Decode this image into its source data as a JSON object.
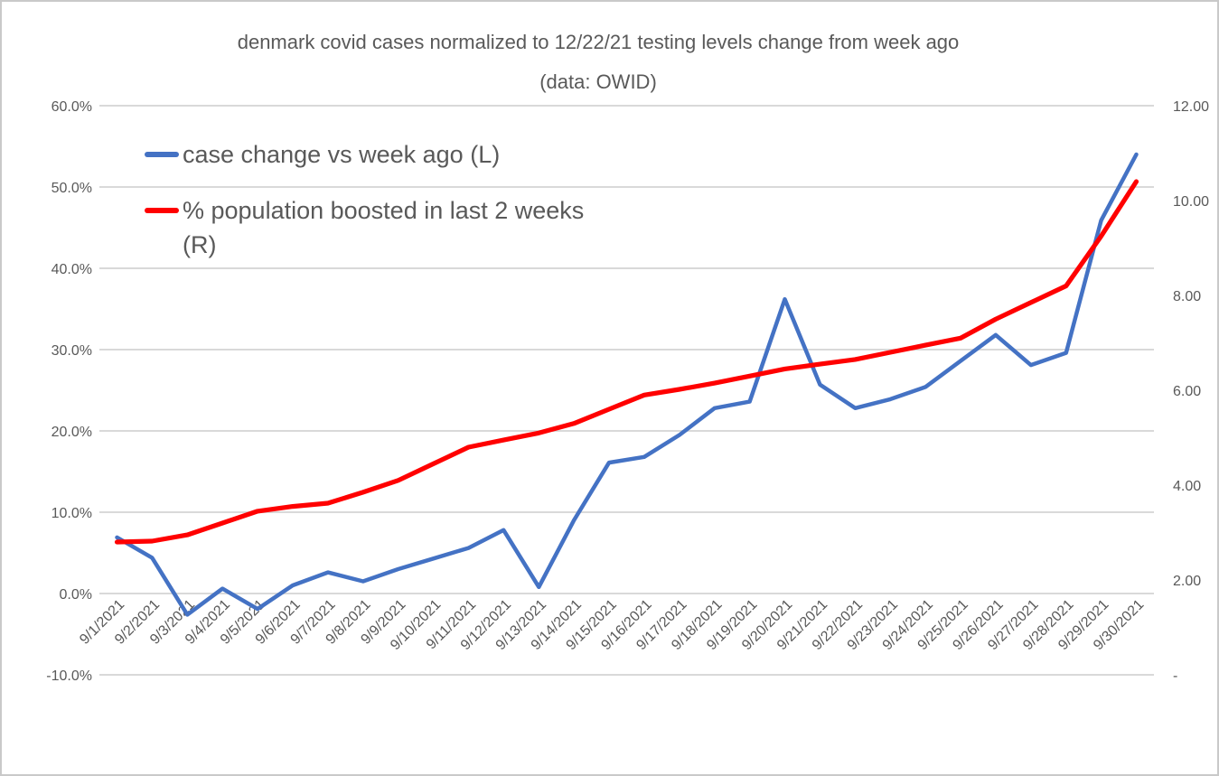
{
  "title": {
    "line1": "denmark covid cases normalized to 12/22/21 testing levels change from week ago",
    "line2": "(data: OWID)"
  },
  "legend": [
    {
      "label": "case change vs week ago (L)",
      "color": "#4472C4"
    },
    {
      "label": "% population boosted in last 2 weeks (R)",
      "color": "#FF0000"
    }
  ],
  "colors": {
    "gridline": "#D9D9D9",
    "axis_text": "#595959",
    "title_text": "#595959",
    "series_blue": "#4472C4",
    "series_red": "#FF0000"
  },
  "chart_data": {
    "type": "line",
    "title": "denmark covid cases normalized to 12/22/21 testing levels change from week ago (data: OWID)",
    "grid": "horizontal",
    "legend_position": "top-left-inside",
    "x": [
      "9/1/2021",
      "9/2/2021",
      "9/3/2021",
      "9/4/2021",
      "9/5/2021",
      "9/6/2021",
      "9/7/2021",
      "9/8/2021",
      "9/9/2021",
      "9/10/2021",
      "9/11/2021",
      "9/12/2021",
      "9/13/2021",
      "9/14/2021",
      "9/15/2021",
      "9/16/2021",
      "9/17/2021",
      "9/18/2021",
      "9/19/2021",
      "9/20/2021",
      "9/21/2021",
      "9/22/2021",
      "9/23/2021",
      "9/24/2021",
      "9/25/2021",
      "9/26/2021",
      "9/27/2021",
      "9/28/2021",
      "9/29/2021",
      "9/30/2021"
    ],
    "series": [
      {
        "name": "case change vs week ago (L)",
        "axis": "left",
        "unit": "percent",
        "color": "#4472C4",
        "values": [
          6.9,
          4.4,
          -2.6,
          0.6,
          -1.9,
          1.0,
          2.6,
          1.5,
          3.0,
          4.3,
          5.6,
          7.8,
          0.8,
          9.0,
          16.1,
          16.8,
          19.5,
          22.8,
          23.6,
          36.2,
          25.7,
          22.8,
          23.9,
          25.4,
          28.6,
          31.8,
          28.1,
          29.6,
          45.9,
          54.0
        ]
      },
      {
        "name": "% population boosted in last 2 weeks (R)",
        "axis": "right",
        "unit": "number",
        "color": "#FF0000",
        "values": [
          2.8,
          2.82,
          2.95,
          3.2,
          3.45,
          3.55,
          3.62,
          3.85,
          4.1,
          4.45,
          4.8,
          4.95,
          5.1,
          5.3,
          5.6,
          5.9,
          6.02,
          6.15,
          6.3,
          6.45,
          6.55,
          6.65,
          6.8,
          6.95,
          7.1,
          7.5,
          7.85,
          8.2,
          9.25,
          10.4
        ]
      }
    ],
    "left_axis": {
      "min": -10,
      "max": 60,
      "tick_values": [
        60,
        50,
        40,
        30,
        20,
        10,
        0,
        -10
      ],
      "tick_labels": [
        "60.0%",
        "50.0%",
        "40.0%",
        "30.0%",
        "20.0%",
        "10.0%",
        "0.0%",
        "-10.0%"
      ]
    },
    "right_axis": {
      "min": 0,
      "max": 12,
      "tick_values": [
        12,
        10,
        8,
        6,
        4,
        2,
        0
      ],
      "tick_labels": [
        "12.00",
        "10.00",
        "8.00",
        "6.00",
        "4.00",
        "2.00",
        "-"
      ]
    }
  }
}
